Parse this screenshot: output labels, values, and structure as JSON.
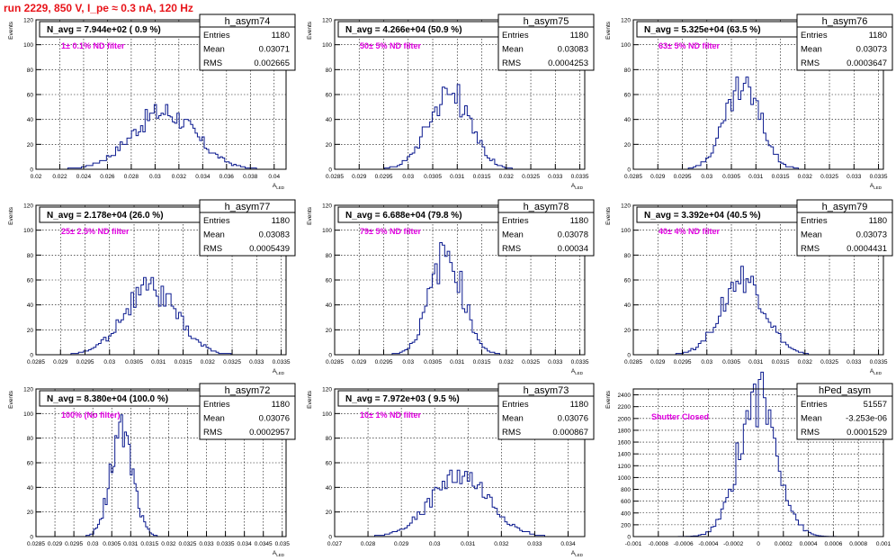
{
  "title": "run 2229,   850 V, I_pe ≈ 0.3 nA, 120 Hz",
  "colors": {
    "title": "#e8141a",
    "histogram": "#0b1a8f",
    "filter_label": "#e000e0",
    "frame": "#000000",
    "grid": "#000000"
  },
  "chart_data": [
    {
      "type": "histogram",
      "name": "h_asym74",
      "ylabel": "Events",
      "xlabel": "A_{LED}",
      "annotation": "N_avg = 7.944e+02 ( 0.9 %)",
      "filter_label": "1± 0.1% ND filter",
      "stats": [
        [
          "Entries",
          "1180"
        ],
        [
          "Mean",
          "0.03071"
        ],
        [
          "RMS",
          "0.002665"
        ]
      ],
      "xlim": [
        0.02,
        0.041
      ],
      "ylim": [
        0,
        120
      ],
      "xticks": [
        "0.02",
        "0.022",
        "0.024",
        "0.026",
        "0.028",
        "0.03",
        "0.032",
        "0.034",
        "0.036",
        "0.038",
        "0.04"
      ],
      "yticks": [
        "0",
        "20",
        "40",
        "60",
        "80",
        "100",
        "120"
      ],
      "mean": 0.03071,
      "rms": 0.002665,
      "peak": 46,
      "nbins": 110,
      "x_min": 0.02,
      "x_max": 0.041,
      "grid": true
    },
    {
      "type": "histogram",
      "name": "h_asym75",
      "ylabel": "Events",
      "xlabel": "A_{LED}",
      "annotation": "N_avg = 4.266e+04 (50.9 %)",
      "filter_label": "50± 5% ND filter",
      "stats": [
        [
          "Entries",
          "1180"
        ],
        [
          "Mean",
          "0.03083"
        ],
        [
          "RMS",
          "0.0004253"
        ]
      ],
      "xlim": [
        0.0285,
        0.0336
      ],
      "ylim": [
        0,
        120
      ],
      "xticks": [
        "0.0285",
        "0.029",
        "0.0295",
        "0.03",
        "0.0305",
        "0.031",
        "0.0315",
        "0.032",
        "0.0325",
        "0.033",
        "0.0335"
      ],
      "yticks": [
        "0",
        "20",
        "40",
        "60",
        "80",
        "100",
        "120"
      ],
      "mean": 0.03083,
      "rms": 0.0004253,
      "peak": 62,
      "nbins": 100,
      "x_min": 0.0285,
      "x_max": 0.0336,
      "grid": true
    },
    {
      "type": "histogram",
      "name": "h_asym76",
      "ylabel": "Events",
      "xlabel": "A_{LED}",
      "annotation": "N_avg = 5.325e+04 (63.5 %)",
      "filter_label": "63± 5% ND filter",
      "stats": [
        [
          "Entries",
          "1180"
        ],
        [
          "Mean",
          "0.03073"
        ],
        [
          "RMS",
          "0.0003647"
        ]
      ],
      "xlim": [
        0.0285,
        0.0336
      ],
      "ylim": [
        0,
        120
      ],
      "xticks": [
        "0.0285",
        "0.029",
        "0.0295",
        "0.03",
        "0.0305",
        "0.031",
        "0.0315",
        "0.032",
        "0.0325",
        "0.033",
        "0.0335"
      ],
      "yticks": [
        "0",
        "20",
        "40",
        "60",
        "80",
        "100",
        "120"
      ],
      "mean": 0.03073,
      "rms": 0.0003647,
      "peak": 66,
      "nbins": 100,
      "x_min": 0.0285,
      "x_max": 0.0336,
      "grid": true
    },
    {
      "type": "histogram",
      "name": "h_asym77",
      "ylabel": "Events",
      "xlabel": "A_{LED}",
      "annotation": "N_avg = 2.178e+04 (26.0 %)",
      "filter_label": "25± 2.5% ND filter",
      "stats": [
        [
          "Entries",
          "1180"
        ],
        [
          "Mean",
          "0.03083"
        ],
        [
          "RMS",
          "0.0005439"
        ]
      ],
      "xlim": [
        0.0285,
        0.0336
      ],
      "ylim": [
        0,
        120
      ],
      "xticks": [
        "0.0285",
        "0.029",
        "0.0295",
        "0.03",
        "0.0305",
        "0.031",
        "0.0315",
        "0.032",
        "0.0325",
        "0.033",
        "0.0335"
      ],
      "yticks": [
        "0",
        "20",
        "40",
        "60",
        "80",
        "100",
        "120"
      ],
      "mean": 0.03083,
      "rms": 0.0005439,
      "peak": 53,
      "nbins": 100,
      "x_min": 0.0285,
      "x_max": 0.0336,
      "grid": true
    },
    {
      "type": "histogram",
      "name": "h_asym78",
      "ylabel": "Events",
      "xlabel": "A_{LED}",
      "annotation": "N_avg = 6.688e+04 (79.8 %)",
      "filter_label": "79± 5% ND filter",
      "stats": [
        [
          "Entries",
          "1180"
        ],
        [
          "Mean",
          "0.03078"
        ],
        [
          "RMS",
          "0.00034"
        ]
      ],
      "xlim": [
        0.0285,
        0.0336
      ],
      "ylim": [
        0,
        120
      ],
      "xticks": [
        "0.0285",
        "0.029",
        "0.0295",
        "0.03",
        "0.0305",
        "0.031",
        "0.0315",
        "0.032",
        "0.0325",
        "0.033",
        "0.0335"
      ],
      "yticks": [
        "0",
        "20",
        "40",
        "60",
        "80",
        "100",
        "120"
      ],
      "mean": 0.03078,
      "rms": 0.00034,
      "peak": 80,
      "nbins": 100,
      "x_min": 0.0285,
      "x_max": 0.0336,
      "grid": true
    },
    {
      "type": "histogram",
      "name": "h_asym79",
      "ylabel": "Events",
      "xlabel": "A_{LED}",
      "annotation": "N_avg = 3.392e+04 (40.5 %)",
      "filter_label": "40± 4% ND filter",
      "stats": [
        [
          "Entries",
          "1180"
        ],
        [
          "Mean",
          "0.03073"
        ],
        [
          "RMS",
          "0.0004431"
        ]
      ],
      "xlim": [
        0.0285,
        0.0336
      ],
      "ylim": [
        0,
        120
      ],
      "xticks": [
        "0.0285",
        "0.029",
        "0.0295",
        "0.03",
        "0.0305",
        "0.031",
        "0.0315",
        "0.032",
        "0.0325",
        "0.033",
        "0.0335"
      ],
      "yticks": [
        "0",
        "20",
        "40",
        "60",
        "80",
        "100",
        "120"
      ],
      "mean": 0.03073,
      "rms": 0.0004431,
      "peak": 60,
      "nbins": 100,
      "x_min": 0.0285,
      "x_max": 0.0336,
      "grid": true
    },
    {
      "type": "histogram",
      "name": "h_asym72",
      "ylabel": "Events",
      "xlabel": "A_{LED}",
      "annotation": "N_avg = 8.380e+04 (100.0 %)",
      "filter_label": "100% (No filter)",
      "stats": [
        [
          "Entries",
          "1180"
        ],
        [
          "Mean",
          "0.03076"
        ],
        [
          "RMS",
          "0.0002957"
        ]
      ],
      "xlim": [
        0.0285,
        0.0351
      ],
      "ylim": [
        0,
        120
      ],
      "xticks": [
        "0.0285",
        "0.029",
        "0.0295",
        "0.03",
        "0.0305",
        "0.031",
        "0.0315",
        "0.032",
        "0.0325",
        "0.033",
        "0.0335",
        "0.034",
        "0.0345",
        "0.035"
      ],
      "yticks": [
        "0",
        "20",
        "40",
        "60",
        "80",
        "100",
        "120"
      ],
      "mean": 0.03076,
      "rms": 0.0002957,
      "peak": 84,
      "nbins": 130,
      "x_min": 0.0285,
      "x_max": 0.0351,
      "grid": true
    },
    {
      "type": "histogram",
      "name": "h_asym73",
      "ylabel": "Events",
      "xlabel": "A_{LED}",
      "annotation": "N_avg = 7.972e+03 ( 9.5 %)",
      "filter_label": "10± 1% ND filter",
      "stats": [
        [
          "Entries",
          "1180"
        ],
        [
          "Mean",
          "0.03076"
        ],
        [
          "RMS",
          "0.000867"
        ]
      ],
      "xlim": [
        0.027,
        0.0345
      ],
      "ylim": [
        0,
        120
      ],
      "xticks": [
        "0.027",
        "0.028",
        "0.029",
        "0.03",
        "0.031",
        "0.032",
        "0.033",
        "0.034"
      ],
      "yticks": [
        "0",
        "20",
        "40",
        "60",
        "80",
        "100",
        "120"
      ],
      "mean": 0.03076,
      "rms": 0.000867,
      "peak": 48,
      "nbins": 100,
      "x_min": 0.027,
      "x_max": 0.0345,
      "grid": true
    },
    {
      "type": "histogram",
      "name": "hPed_asym",
      "ylabel": "Events",
      "xlabel": "",
      "annotation": "",
      "filter_label": "Shutter Closed",
      "stats": [
        [
          "Entries",
          "51557"
        ],
        [
          "Mean",
          "-3.253e-06"
        ],
        [
          "RMS",
          "0.0001529"
        ]
      ],
      "xlim": [
        -0.001,
        0.001
      ],
      "ylim": [
        0,
        2500
      ],
      "xticks": [
        "-0.001",
        "-0.0008",
        "-0.0006",
        "-0.0004",
        "-0.0002",
        "0",
        "0.0002",
        "0.0004",
        "0.0006",
        "0.0008",
        "0.001"
      ],
      "yticks": [
        "0",
        "200",
        "400",
        "600",
        "800",
        "1000",
        "1200",
        "1400",
        "1600",
        "1800",
        "2000",
        "2200",
        "2400"
      ],
      "mean": -3.253e-06,
      "rms": 0.0001529,
      "peak": 2380,
      "nbins": 100,
      "x_min": -0.001,
      "x_max": 0.001,
      "grid": true
    }
  ]
}
